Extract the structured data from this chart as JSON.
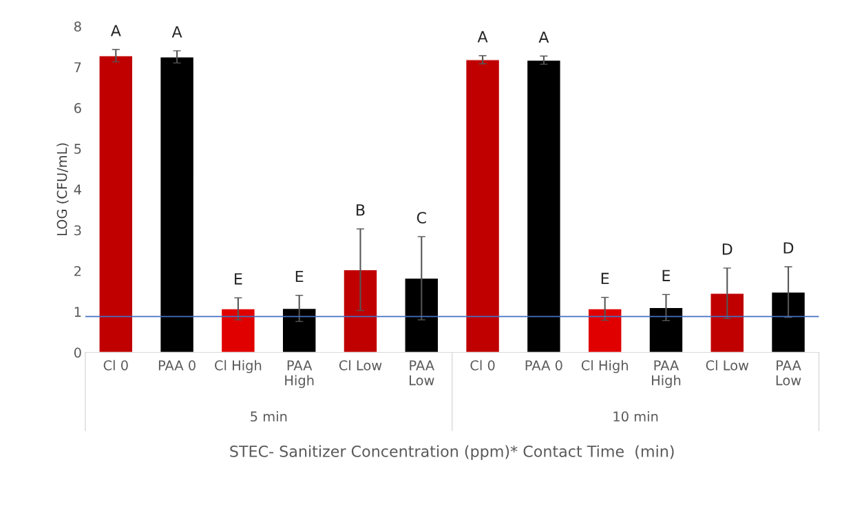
{
  "chart_data": {
    "type": "bar",
    "xlabel": "STEC- Sanitizer Concentration (ppm)* Contact Time  (min)",
    "ylabel": "LOG (CFU/mL)",
    "categories": [
      "Cl 0",
      "PAA 0",
      "Cl High",
      "PAA\nHigh",
      "Cl Low",
      "PAA\nLow",
      "Cl 0",
      "PAA 0",
      "Cl High",
      "PAA\nHigh",
      "Cl Low",
      "PAA\nLow"
    ],
    "values": [
      7.28,
      7.25,
      1.07,
      1.08,
      2.03,
      1.82,
      7.18,
      7.17,
      1.07,
      1.1,
      1.45,
      1.48
    ],
    "errors": [
      0.15,
      0.15,
      0.27,
      0.32,
      1.0,
      1.02,
      0.1,
      0.1,
      0.28,
      0.32,
      0.62,
      0.62
    ],
    "colors": [
      "#c00000",
      "#000000",
      "#e00000",
      "#000000",
      "#c00000",
      "#000000",
      "#c00000",
      "#000000",
      "#e00000",
      "#000000",
      "#c00000",
      "#000000"
    ],
    "ylim": [
      0,
      8
    ],
    "yticks": [
      0,
      1,
      2,
      3,
      4,
      5,
      6,
      7,
      8
    ],
    "ref_lines": [
      {
        "axis": "y",
        "value": 0.88,
        "color": "#4472c4"
      }
    ],
    "annotations": [
      "A",
      "A",
      "E",
      "E",
      "B",
      "C",
      "A",
      "A",
      "E",
      "E",
      "D",
      "D",
      "5 min",
      "10 min"
    ]
  }
}
